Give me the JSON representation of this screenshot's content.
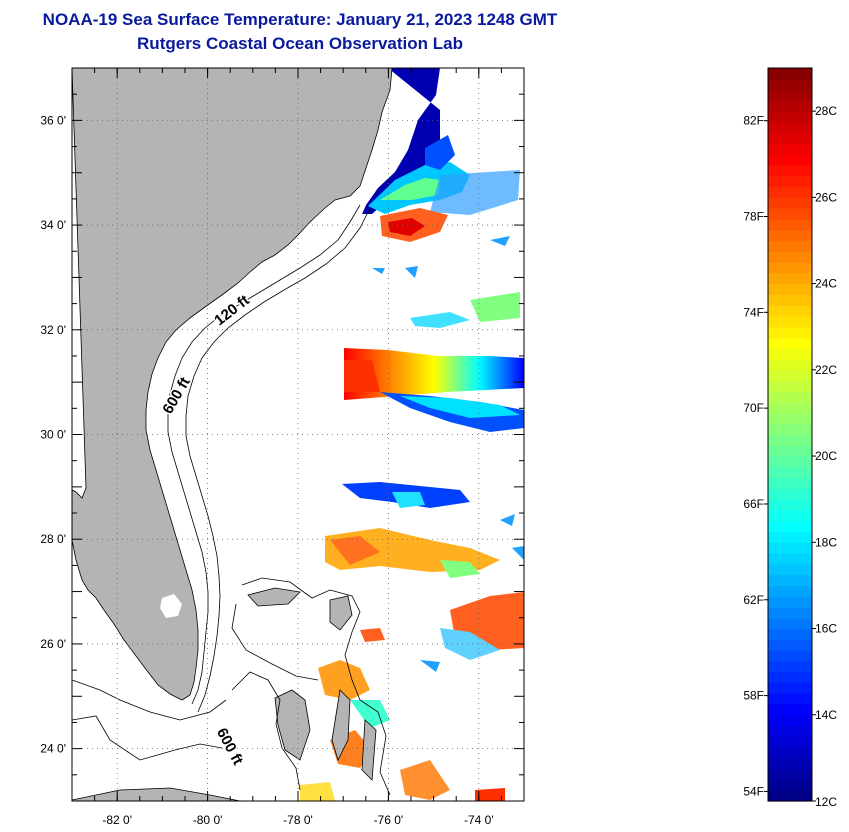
{
  "title": "NOAA-19 Sea Surface Temperature:  January 21, 2023 1248 GMT",
  "subtitle": "Rutgers Coastal Ocean Observation Lab",
  "map": {
    "lon_range": [
      -83.0,
      -73.0
    ],
    "lat_range": [
      23.0,
      37.0
    ],
    "lon_ticks": [
      {
        "value": -82,
        "label": "-82 0'"
      },
      {
        "value": -80,
        "label": "-80 0'"
      },
      {
        "value": -78,
        "label": "-78 0'"
      },
      {
        "value": -76,
        "label": "-76 0'"
      },
      {
        "value": -74,
        "label": "-74 0'"
      }
    ],
    "lat_ticks": [
      {
        "value": 36,
        "label": "36 0'"
      },
      {
        "value": 34,
        "label": "34 0'"
      },
      {
        "value": 32,
        "label": "32 0'"
      },
      {
        "value": 30,
        "label": "30 0'"
      },
      {
        "value": 28,
        "label": "28 0'"
      },
      {
        "value": 26,
        "label": "26 0'"
      },
      {
        "value": 24,
        "label": "24 0'"
      }
    ],
    "isobath_labels": [
      {
        "text": "120 ft",
        "lon": -79.4,
        "lat": 32.3,
        "angle": -38
      },
      {
        "text": "600 ft",
        "lon": -80.6,
        "lat": 30.7,
        "angle": -60
      },
      {
        "text": "600 ft",
        "lon": -79.6,
        "lat": 24.0,
        "angle": 62
      }
    ],
    "land_color": "#b4b4b4",
    "grid": "dotted"
  },
  "colorbar": {
    "celsius_labels": [
      "28C",
      "26C",
      "24C",
      "22C",
      "20C",
      "18C",
      "16C",
      "14C",
      "12C"
    ],
    "fahrenheit_labels": [
      "82F",
      "78F",
      "74F",
      "70F",
      "66F",
      "62F",
      "58F",
      "54F"
    ],
    "celsius_range": [
      12,
      29
    ],
    "colors": [
      "#00007f",
      "#0000ff",
      "#0080ff",
      "#00ffff",
      "#80ff80",
      "#ffff00",
      "#ff8000",
      "#ff0000",
      "#7f0000"
    ]
  }
}
